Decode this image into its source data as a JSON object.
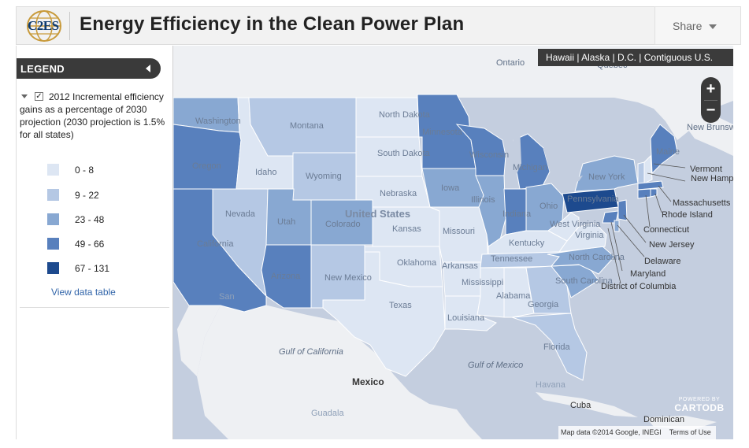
{
  "header": {
    "logo_text": "C2ES",
    "title": "Energy Efficiency in the Clean Power Plan",
    "share_label": "Share"
  },
  "legend": {
    "title": "LEGEND",
    "layer_description": "2012 Incremental efficiency gains as a percentage of 2030 projection (2030 projection is 1.5% for all states)",
    "layer_checked": true,
    "bins": [
      {
        "label": "0 - 8",
        "color": "#dde6f3"
      },
      {
        "label": "9 - 22",
        "color": "#b5c8e4"
      },
      {
        "label": "23 - 48",
        "color": "#88a8d2"
      },
      {
        "label": "49 - 66",
        "color": "#5880bd"
      },
      {
        "label": "67 - 131",
        "color": "#1d4a8e"
      }
    ],
    "view_table_label": "View data table"
  },
  "map": {
    "region_links": "Hawaii | Alaska | D.C. | Contiguous U.S.",
    "zoom_in": "+",
    "zoom_out": "−",
    "powered_by": "POWERED BY",
    "cartodb": "CARTODB",
    "attribution": "Map data ©2014 Google, INEGI",
    "terms": "Terms of Use",
    "colors": {
      "water": "#c4cedf",
      "land": "#eef0f3",
      "border": "#ffffff"
    },
    "state_labels": [
      "Washington",
      "Oregon",
      "California",
      "Nevada",
      "Idaho",
      "Montana",
      "Wyoming",
      "Utah",
      "Arizona",
      "Colorado",
      "New Mexico",
      "North Dakota",
      "South Dakota",
      "Nebraska",
      "Kansas",
      "Oklahoma",
      "Texas",
      "Minnesota",
      "Iowa",
      "Missouri",
      "Arkansas",
      "Louisiana",
      "Wisconsin",
      "Illinois",
      "Michigan",
      "Indiana",
      "Ohio",
      "Kentucky",
      "Tennessee",
      "Mississippi",
      "Alabama",
      "Georgia",
      "Florida",
      "South Carolina",
      "North Carolina",
      "Virginia",
      "West Virginia",
      "Pennsylvania",
      "New York",
      "Maine",
      "Vermont",
      "New Hampshire",
      "Massachusetts",
      "Rhode Island",
      "Connecticut",
      "New Jersey",
      "Delaware",
      "Maryland",
      "District of Columbia",
      "United States"
    ],
    "geo_labels": [
      "Ontario",
      "Quebec",
      "New Brunswick",
      "Gulf of California",
      "Gulf of Mexico",
      "Mexico",
      "Cuba",
      "Havana",
      "Dominican",
      "Guadala",
      "San"
    ]
  }
}
